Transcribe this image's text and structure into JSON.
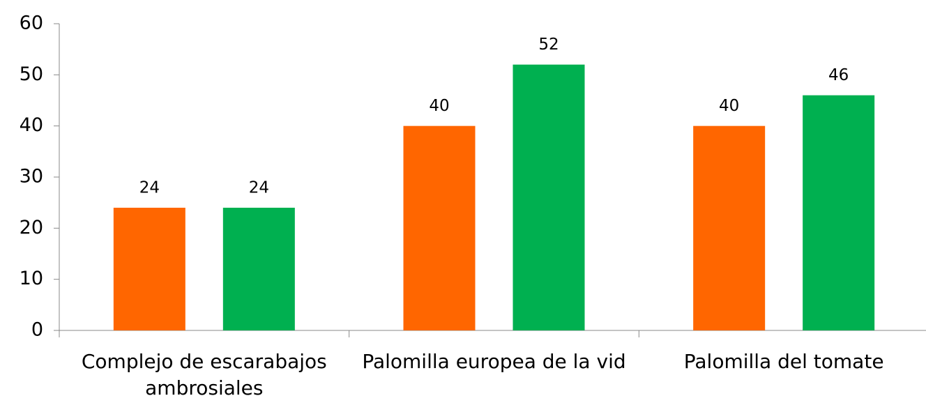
{
  "chart_data": {
    "type": "bar",
    "categories": [
      "Complejo de escarabajos ambrosiales",
      "Palomilla europea de la vid",
      "Palomilla del tomate"
    ],
    "series": [
      {
        "color": "#ff6600",
        "values": [
          24,
          40,
          40
        ]
      },
      {
        "color": "#00b050",
        "values": [
          24,
          52,
          46
        ]
      }
    ],
    "ylim": [
      0,
      60
    ],
    "yticks": [
      0,
      10,
      20,
      30,
      40,
      50,
      60
    ],
    "grid": false,
    "data_labels": true
  }
}
